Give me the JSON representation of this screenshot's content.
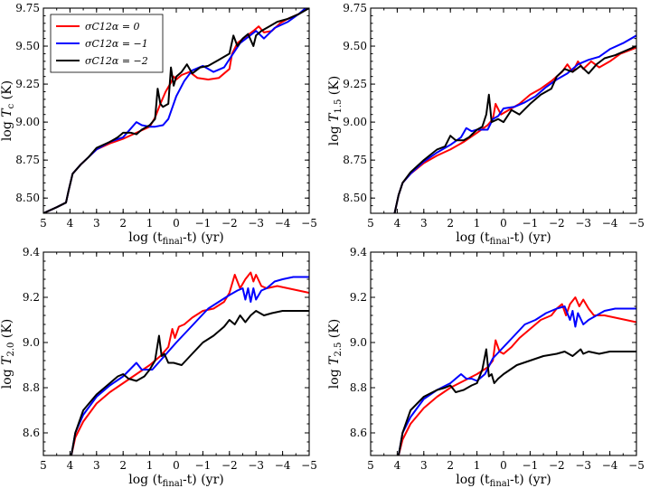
{
  "legend": [
    {
      "label": "σC12α = 0",
      "color": "#ff0000"
    },
    {
      "label": "σC12α = −1",
      "color": "#0000ff"
    },
    {
      "label": "σC12α = −2",
      "color": "#000000"
    }
  ],
  "chart_data": [
    {
      "type": "line",
      "panel": "top-left",
      "ylabel": "log T_c (K)",
      "xlabel": "log (t_final-t) (yr)",
      "xlim": [
        5,
        -5
      ],
      "ylim": [
        8.4,
        9.75
      ],
      "xticks": [
        5,
        4,
        3,
        2,
        1,
        0,
        -1,
        -2,
        -3,
        -4,
        -5
      ],
      "xtick_labels": [
        "5",
        "4",
        "3",
        "2",
        "1",
        "0",
        "−1",
        "−2",
        "−3",
        "−4",
        "−5"
      ],
      "yticks": [
        8.5,
        8.75,
        9.0,
        9.25,
        9.5,
        9.75
      ],
      "ytick_labels": [
        "8.50",
        "8.75",
        "9.00",
        "9.25",
        "9.50",
        "9.75"
      ],
      "legend_position": "top-left",
      "series": [
        {
          "name": "σC12α = 0",
          "color": "#ff0000",
          "x": [
            5,
            4.5,
            4.15,
            4.05,
            3.9,
            3.6,
            3.3,
            3.0,
            2.5,
            2.0,
            1.5,
            1.0,
            0.8,
            0.6,
            0.4,
            0.2,
            0.1,
            0.0,
            -0.2,
            -0.5,
            -0.8,
            -1.2,
            -1.6,
            -2.0,
            -2.1,
            -2.3,
            -2.6,
            -2.9,
            -3.1,
            -3.3,
            -3.6,
            -3.9,
            -4.2,
            -4.6,
            -5.0
          ],
          "y": [
            8.4,
            8.44,
            8.47,
            8.55,
            8.66,
            8.72,
            8.77,
            8.82,
            8.86,
            8.89,
            8.93,
            8.97,
            9.03,
            9.12,
            9.2,
            9.26,
            9.3,
            9.28,
            9.31,
            9.33,
            9.29,
            9.28,
            9.29,
            9.35,
            9.45,
            9.52,
            9.56,
            9.6,
            9.63,
            9.59,
            9.6,
            9.65,
            9.68,
            9.71,
            9.76
          ]
        },
        {
          "name": "σC12α = −1",
          "color": "#0000ff",
          "x": [
            5,
            4.5,
            4.15,
            4.05,
            3.9,
            3.6,
            3.3,
            3.0,
            2.5,
            2.0,
            1.8,
            1.5,
            1.3,
            1.0,
            0.8,
            0.5,
            0.3,
            0.0,
            -0.3,
            -0.6,
            -1.0,
            -1.4,
            -1.8,
            -2.1,
            -2.4,
            -2.7,
            -3.0,
            -3.3,
            -3.7,
            -4.2,
            -4.6,
            -5.0
          ],
          "y": [
            8.4,
            8.44,
            8.47,
            8.55,
            8.66,
            8.72,
            8.77,
            8.82,
            8.87,
            8.9,
            8.94,
            9.0,
            8.98,
            8.97,
            8.97,
            8.98,
            9.02,
            9.17,
            9.27,
            9.34,
            9.37,
            9.33,
            9.36,
            9.44,
            9.52,
            9.56,
            9.6,
            9.55,
            9.62,
            9.66,
            9.71,
            9.77
          ]
        },
        {
          "name": "σC12α = −2",
          "color": "#000000",
          "x": [
            5,
            4.5,
            4.15,
            4.05,
            3.9,
            3.6,
            3.3,
            3.0,
            2.5,
            2.2,
            2.0,
            1.7,
            1.5,
            1.3,
            1.0,
            0.8,
            0.7,
            0.6,
            0.5,
            0.3,
            0.2,
            0.1,
            0.0,
            -0.2,
            -0.4,
            -0.6,
            -0.9,
            -1.2,
            -1.6,
            -2.0,
            -2.15,
            -2.3,
            -2.5,
            -2.7,
            -2.9,
            -3.0,
            -3.2,
            -3.5,
            -3.8,
            -4.2,
            -4.6,
            -5.0
          ],
          "y": [
            8.4,
            8.44,
            8.47,
            8.55,
            8.66,
            8.72,
            8.77,
            8.83,
            8.87,
            8.9,
            8.93,
            8.93,
            8.92,
            8.95,
            8.98,
            9.02,
            9.22,
            9.12,
            9.1,
            9.12,
            9.36,
            9.24,
            9.3,
            9.33,
            9.38,
            9.32,
            9.36,
            9.37,
            9.41,
            9.45,
            9.57,
            9.5,
            9.55,
            9.58,
            9.5,
            9.57,
            9.6,
            9.63,
            9.66,
            9.68,
            9.71,
            9.75
          ]
        }
      ]
    },
    {
      "type": "line",
      "panel": "top-right",
      "ylabel": "log T_1.5 (K)",
      "xlabel": "log (t_final-t) (yr)",
      "xlim": [
        5,
        -5
      ],
      "ylim": [
        8.4,
        9.75
      ],
      "xticks": [
        5,
        4,
        3,
        2,
        1,
        0,
        -1,
        -2,
        -3,
        -4,
        -5
      ],
      "xtick_labels": [
        "5",
        "4",
        "3",
        "2",
        "1",
        "0",
        "−1",
        "−2",
        "−3",
        "−4",
        "−5"
      ],
      "yticks": [
        8.5,
        8.75,
        9.0,
        9.25,
        9.5,
        9.75
      ],
      "ytick_labels": [
        "8.50",
        "8.75",
        "9.00",
        "9.25",
        "9.50",
        "9.75"
      ],
      "series": [
        {
          "name": "σC12α = 0",
          "color": "#ff0000",
          "x": [
            4.1,
            3.95,
            3.8,
            3.5,
            3.0,
            2.5,
            2.0,
            1.5,
            1.0,
            0.6,
            0.4,
            0.3,
            0.1,
            -0.3,
            -0.6,
            -1.0,
            -1.4,
            -1.8,
            -2.2,
            -2.4,
            -2.6,
            -2.8,
            -3.0,
            -3.3,
            -3.6,
            -4.0,
            -4.4,
            -5.0
          ],
          "y": [
            8.4,
            8.52,
            8.6,
            8.66,
            8.73,
            8.78,
            8.82,
            8.87,
            8.93,
            8.98,
            9.02,
            9.12,
            9.05,
            9.09,
            9.12,
            9.18,
            9.22,
            9.27,
            9.33,
            9.38,
            9.33,
            9.4,
            9.35,
            9.4,
            9.36,
            9.4,
            9.45,
            9.49
          ]
        },
        {
          "name": "σC12α = −1",
          "color": "#0000ff",
          "x": [
            4.1,
            3.95,
            3.8,
            3.5,
            3.0,
            2.5,
            2.0,
            1.6,
            1.4,
            1.2,
            1.0,
            0.6,
            0.4,
            0.2,
            0.0,
            -0.4,
            -0.8,
            -1.2,
            -1.6,
            -2.0,
            -2.4,
            -2.8,
            -3.2,
            -3.6,
            -4.0,
            -4.5,
            -5.0
          ],
          "y": [
            8.4,
            8.52,
            8.6,
            8.66,
            8.74,
            8.8,
            8.85,
            8.9,
            8.96,
            8.94,
            8.95,
            8.95,
            9.02,
            9.04,
            9.09,
            9.1,
            9.13,
            9.17,
            9.23,
            9.28,
            9.32,
            9.38,
            9.41,
            9.43,
            9.48,
            9.52,
            9.57
          ]
        },
        {
          "name": "σC12α = −2",
          "color": "#000000",
          "x": [
            4.1,
            3.95,
            3.8,
            3.5,
            3.0,
            2.5,
            2.2,
            2.0,
            1.8,
            1.5,
            1.3,
            1.0,
            0.8,
            0.65,
            0.55,
            0.45,
            0.2,
            0.0,
            -0.3,
            -0.6,
            -1.0,
            -1.4,
            -1.8,
            -2.0,
            -2.3,
            -2.6,
            -2.9,
            -3.2,
            -3.5,
            -3.8,
            -4.2,
            -4.6,
            -5.0
          ],
          "y": [
            8.4,
            8.52,
            8.6,
            8.67,
            8.75,
            8.82,
            8.84,
            8.91,
            8.88,
            8.88,
            8.9,
            8.95,
            8.97,
            9.05,
            9.18,
            9.0,
            9.02,
            9.0,
            9.08,
            9.05,
            9.12,
            9.18,
            9.22,
            9.3,
            9.35,
            9.33,
            9.37,
            9.32,
            9.38,
            9.42,
            9.44,
            9.47,
            9.5
          ]
        }
      ]
    },
    {
      "type": "line",
      "panel": "bottom-left",
      "ylabel": "log T_2.0 (K)",
      "xlabel": "log (t_final-t) (yr)",
      "xlim": [
        5,
        -5
      ],
      "ylim": [
        8.5,
        9.4
      ],
      "xticks": [
        5,
        4,
        3,
        2,
        1,
        0,
        -1,
        -2,
        -3,
        -4,
        -5
      ],
      "xtick_labels": [
        "5",
        "4",
        "3",
        "2",
        "1",
        "0",
        "−1",
        "−2",
        "−3",
        "−4",
        "−5"
      ],
      "yticks": [
        8.6,
        8.8,
        9.0,
        9.2,
        9.4
      ],
      "ytick_labels": [
        "8.6",
        "8.8",
        "9.0",
        "9.2",
        "9.4"
      ],
      "series": [
        {
          "name": "σC12α = 0",
          "color": "#ff0000",
          "x": [
            3.95,
            3.8,
            3.5,
            3.0,
            2.5,
            2.0,
            1.5,
            1.0,
            0.6,
            0.3,
            0.15,
            0.05,
            -0.1,
            -0.3,
            -0.6,
            -1.0,
            -1.4,
            -1.8,
            -2.0,
            -2.2,
            -2.4,
            -2.6,
            -2.8,
            -2.9,
            -3.0,
            -3.2,
            -3.4,
            -3.8,
            -4.2,
            -4.6,
            -5.0
          ],
          "y": [
            8.5,
            8.58,
            8.65,
            8.73,
            8.78,
            8.82,
            8.86,
            8.9,
            8.94,
            8.98,
            9.06,
            9.02,
            9.07,
            9.08,
            9.11,
            9.14,
            9.15,
            9.18,
            9.22,
            9.3,
            9.24,
            9.28,
            9.31,
            9.27,
            9.3,
            9.25,
            9.24,
            9.25,
            9.24,
            9.23,
            9.22
          ]
        },
        {
          "name": "σC12α = −1",
          "color": "#0000ff",
          "x": [
            3.95,
            3.8,
            3.5,
            3.0,
            2.5,
            2.0,
            1.5,
            1.3,
            1.1,
            0.9,
            0.6,
            0.3,
            0.0,
            -0.4,
            -0.8,
            -1.2,
            -1.6,
            -2.0,
            -2.3,
            -2.5,
            -2.6,
            -2.7,
            -2.8,
            -2.9,
            -3.0,
            -3.2,
            -3.4,
            -3.7,
            -4.0,
            -4.4,
            -5.0
          ],
          "y": [
            8.5,
            8.6,
            8.68,
            8.76,
            8.81,
            8.85,
            8.91,
            8.88,
            8.88,
            8.88,
            8.92,
            8.96,
            9.0,
            9.05,
            9.1,
            9.15,
            9.18,
            9.21,
            9.23,
            9.24,
            9.19,
            9.24,
            9.18,
            9.24,
            9.19,
            9.23,
            9.24,
            9.27,
            9.28,
            9.29,
            9.29
          ]
        },
        {
          "name": "σC12α = −2",
          "color": "#000000",
          "x": [
            3.95,
            3.8,
            3.5,
            3.0,
            2.5,
            2.2,
            2.0,
            1.8,
            1.5,
            1.2,
            1.0,
            0.8,
            0.65,
            0.55,
            0.45,
            0.3,
            0.1,
            -0.2,
            -0.6,
            -1.0,
            -1.4,
            -1.8,
            -2.0,
            -2.2,
            -2.4,
            -2.6,
            -2.8,
            -3.0,
            -3.3,
            -3.6,
            -4.0,
            -4.5,
            -5.0
          ],
          "y": [
            8.5,
            8.6,
            8.7,
            8.77,
            8.82,
            8.85,
            8.86,
            8.84,
            8.83,
            8.85,
            8.88,
            8.92,
            9.03,
            8.94,
            8.95,
            8.91,
            8.91,
            8.9,
            8.95,
            9.0,
            9.03,
            9.07,
            9.1,
            9.08,
            9.12,
            9.09,
            9.12,
            9.14,
            9.12,
            9.13,
            9.14,
            9.14,
            9.14
          ]
        }
      ]
    },
    {
      "type": "line",
      "panel": "bottom-right",
      "ylabel": "log T_2.5 (K)",
      "xlabel": "log (t_final-t) (yr)",
      "xlim": [
        5,
        -5
      ],
      "ylim": [
        8.5,
        9.4
      ],
      "xticks": [
        5,
        4,
        3,
        2,
        1,
        0,
        -1,
        -2,
        -3,
        -4,
        -5
      ],
      "xtick_labels": [
        "5",
        "4",
        "3",
        "2",
        "1",
        "0",
        "−1",
        "−2",
        "−3",
        "−4",
        "−5"
      ],
      "yticks": [
        8.6,
        8.8,
        9.0,
        9.2,
        9.4
      ],
      "ytick_labels": [
        "8.6",
        "8.8",
        "9.0",
        "9.2",
        "9.4"
      ],
      "series": [
        {
          "name": "σC12α = 0",
          "color": "#ff0000",
          "x": [
            3.95,
            3.8,
            3.5,
            3.0,
            2.5,
            2.0,
            1.5,
            1.0,
            0.6,
            0.4,
            0.3,
            0.15,
            0.0,
            -0.3,
            -0.6,
            -1.0,
            -1.4,
            -1.8,
            -2.0,
            -2.2,
            -2.35,
            -2.5,
            -2.7,
            -2.85,
            -3.0,
            -3.2,
            -3.4,
            -3.8,
            -4.2,
            -4.6,
            -5.0
          ],
          "y": [
            8.5,
            8.57,
            8.64,
            8.71,
            8.76,
            8.8,
            8.83,
            8.86,
            8.89,
            8.92,
            9.01,
            8.96,
            8.95,
            8.98,
            9.02,
            9.06,
            9.1,
            9.12,
            9.15,
            9.17,
            9.12,
            9.17,
            9.2,
            9.16,
            9.19,
            9.15,
            9.12,
            9.12,
            9.11,
            9.1,
            9.09
          ]
        },
        {
          "name": "σC12α = −1",
          "color": "#0000ff",
          "x": [
            3.95,
            3.8,
            3.5,
            3.0,
            2.5,
            2.0,
            1.6,
            1.4,
            1.2,
            1.0,
            0.7,
            0.4,
            0.0,
            -0.4,
            -0.8,
            -1.2,
            -1.6,
            -2.0,
            -2.3,
            -2.5,
            -2.6,
            -2.7,
            -2.8,
            -3.0,
            -3.2,
            -3.5,
            -3.8,
            -4.2,
            -4.6,
            -5.0
          ],
          "y": [
            8.5,
            8.6,
            8.67,
            8.75,
            8.79,
            8.82,
            8.86,
            8.84,
            8.84,
            8.83,
            8.86,
            8.93,
            8.98,
            9.03,
            9.08,
            9.1,
            9.13,
            9.15,
            9.16,
            9.1,
            9.14,
            9.07,
            9.13,
            9.08,
            9.1,
            9.12,
            9.14,
            9.15,
            9.15,
            9.15
          ]
        },
        {
          "name": "σC12α = −2",
          "color": "#000000",
          "x": [
            3.95,
            3.8,
            3.5,
            3.0,
            2.5,
            2.2,
            2.0,
            1.8,
            1.5,
            1.2,
            1.0,
            0.8,
            0.65,
            0.55,
            0.45,
            0.35,
            0.2,
            0.0,
            -0.5,
            -1.0,
            -1.5,
            -2.0,
            -2.3,
            -2.6,
            -2.9,
            -3.0,
            -3.2,
            -3.6,
            -4.0,
            -4.5,
            -5.0
          ],
          "y": [
            8.5,
            8.6,
            8.7,
            8.76,
            8.79,
            8.8,
            8.81,
            8.78,
            8.79,
            8.81,
            8.82,
            8.88,
            8.97,
            8.85,
            8.86,
            8.82,
            8.84,
            8.86,
            8.9,
            8.92,
            8.94,
            8.95,
            8.96,
            8.94,
            8.97,
            8.95,
            8.96,
            8.95,
            8.96,
            8.96,
            8.96
          ]
        }
      ]
    }
  ]
}
